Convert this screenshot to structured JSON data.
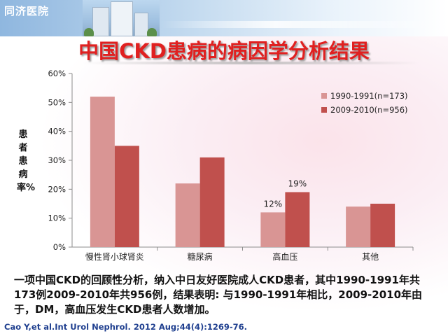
{
  "header": {
    "logo_text": "同济医院"
  },
  "slide": {
    "title": "中国CKD患病的病因学分析结果",
    "summary": "一项中国CKD的回顾性分析，纳入中日友好医院成人CKD患者，其中1990-1991年共173例2009-2010年共956例，结果表明:  与1990-1991年相比，2009-2010年由于，DM，高血压发生CKD患者人数增加。",
    "citation": "Cao Y,et al.Int Urol Nephrol. 2012 Aug;44(4):1269-76."
  },
  "colors": {
    "series1": "#d99594",
    "series2": "#c0504d",
    "title": "#e02020"
  },
  "chart_data": {
    "type": "bar",
    "title": "",
    "xlabel": "",
    "ylabel": "患者患病率%",
    "ylim": [
      0,
      60
    ],
    "y_ticks": [
      "0%",
      "10%",
      "20%",
      "30%",
      "40%",
      "50%",
      "60%"
    ],
    "y_tick_values": [
      0,
      10,
      20,
      30,
      40,
      50,
      60
    ],
    "categories": [
      "慢性肾小球肾炎",
      "糖尿病",
      "高血压",
      "其他"
    ],
    "series": [
      {
        "name": "1990-1991(n=173)",
        "values": [
          52,
          22,
          12,
          14
        ]
      },
      {
        "name": "2009-2010(n=956)",
        "values": [
          35,
          31,
          19,
          15
        ]
      }
    ],
    "data_labels": [
      {
        "category": "高血压",
        "series": 0,
        "text": "12%"
      },
      {
        "category": "高血压",
        "series": 1,
        "text": "19%"
      }
    ],
    "legend_position": "top-right",
    "grid": false
  }
}
